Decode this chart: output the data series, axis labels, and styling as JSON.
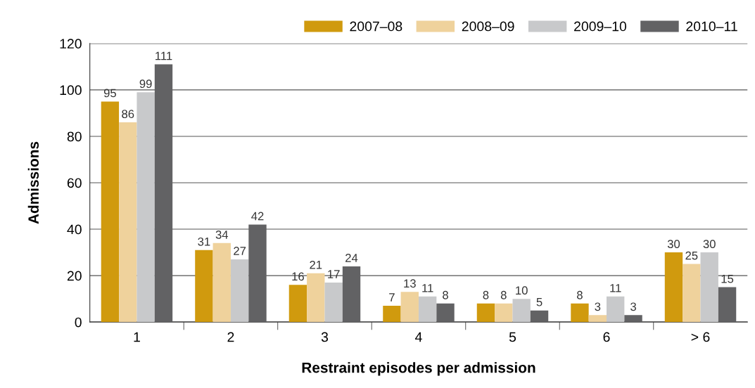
{
  "chart_data": {
    "type": "bar",
    "xlabel": "Restraint episodes per admission",
    "ylabel": "Admissions",
    "categories": [
      "1",
      "2",
      "3",
      "4",
      "5",
      "6",
      "> 6"
    ],
    "series": [
      {
        "name": "2007–08",
        "color": "#d09a0e",
        "values": [
          95,
          31,
          16,
          7,
          8,
          8,
          30
        ]
      },
      {
        "name": "2008–09",
        "color": "#efd29c",
        "values": [
          86,
          34,
          21,
          13,
          8,
          3,
          25
        ]
      },
      {
        "name": "2009–10",
        "color": "#c8c9cb",
        "values": [
          99,
          27,
          17,
          11,
          10,
          11,
          30
        ]
      },
      {
        "name": "2010–11",
        "color": "#626264",
        "values": [
          111,
          42,
          24,
          8,
          5,
          3,
          15
        ]
      }
    ],
    "ylim": [
      0,
      120
    ],
    "yticks": [
      0,
      20,
      40,
      60,
      80,
      100,
      120
    ],
    "grid": "y",
    "legend": "top right",
    "data_labels": true
  }
}
